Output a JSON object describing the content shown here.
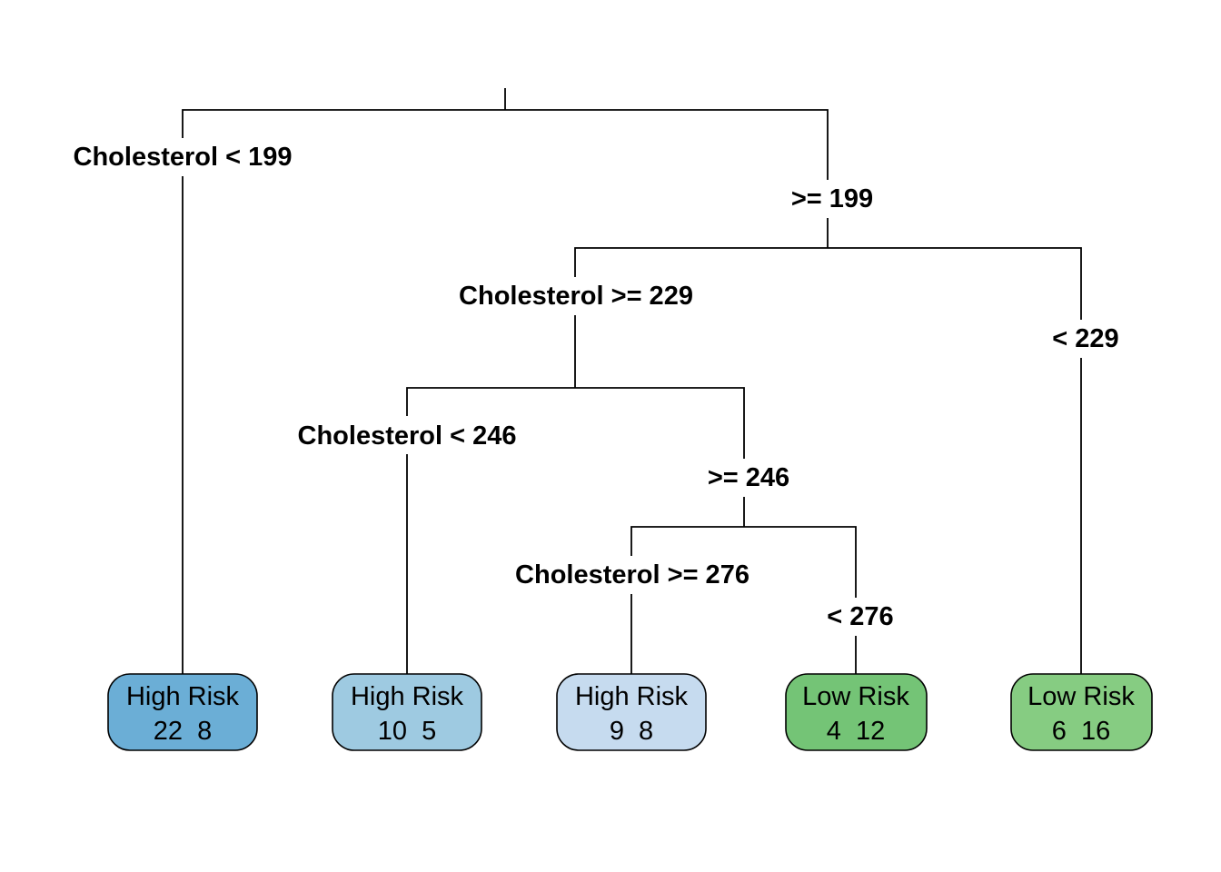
{
  "tree": {
    "splits": [
      {
        "left_label": "Cholesterol < 199",
        "right_label": ">= 199"
      },
      {
        "left_label": "Cholesterol >= 229",
        "right_label": "< 229"
      },
      {
        "left_label": "Cholesterol < 246",
        "right_label": ">= 246"
      },
      {
        "left_label": "Cholesterol >= 276",
        "right_label": "< 276"
      }
    ],
    "leaves": [
      {
        "label": "High Risk",
        "counts": "22  8",
        "color": "#6baed6"
      },
      {
        "label": "High Risk",
        "counts": "10  5",
        "color": "#9ecae1"
      },
      {
        "label": "High Risk",
        "counts": "9  8",
        "color": "#c6dbef"
      },
      {
        "label": "Low Risk",
        "counts": "4  12",
        "color": "#74c476"
      },
      {
        "label": "Low Risk",
        "counts": "6  16",
        "color": "#86cc82"
      }
    ]
  }
}
